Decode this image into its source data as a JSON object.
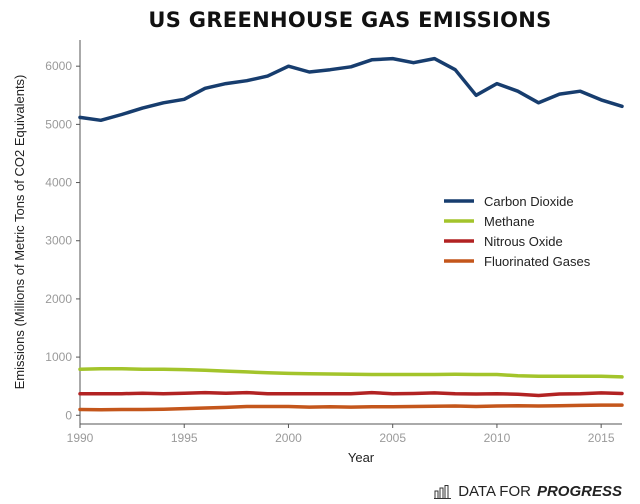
{
  "chart_data": {
    "type": "line",
    "title": "US GREENHOUSE GAS EMISSIONS",
    "xlabel": "Year",
    "ylabel": "Emissions (Millions of Metric Tons of CO2 Equivalents)",
    "xlim": [
      1990,
      2016
    ],
    "ylim": [
      -150,
      6450
    ],
    "xticks": [
      1990,
      1995,
      2000,
      2005,
      2010,
      2015
    ],
    "yticks": [
      0,
      1000,
      2000,
      3000,
      4000,
      5000,
      6000
    ],
    "grid": false,
    "legend_position": "right",
    "x": [
      1990,
      1991,
      1992,
      1993,
      1994,
      1995,
      1996,
      1997,
      1998,
      1999,
      2000,
      2001,
      2002,
      2003,
      2004,
      2005,
      2006,
      2007,
      2008,
      2009,
      2010,
      2011,
      2012,
      2013,
      2014,
      2015,
      2016
    ],
    "series": [
      {
        "name": "Carbon Dioxide",
        "color": "#173d6e",
        "values": [
          5120,
          5070,
          5170,
          5280,
          5370,
          5430,
          5620,
          5700,
          5750,
          5830,
          6000,
          5900,
          5940,
          5990,
          6110,
          6130,
          6060,
          6130,
          5940,
          5500,
          5700,
          5570,
          5370,
          5520,
          5570,
          5420,
          5310
        ]
      },
      {
        "name": "Methane",
        "color": "#a3c42b",
        "values": [
          790,
          800,
          800,
          790,
          790,
          785,
          775,
          760,
          745,
          730,
          720,
          715,
          710,
          705,
          700,
          700,
          700,
          700,
          705,
          700,
          700,
          680,
          670,
          670,
          670,
          670,
          660
        ]
      },
      {
        "name": "Nitrous Oxide",
        "color": "#b22222",
        "values": [
          370,
          370,
          370,
          380,
          370,
          380,
          390,
          380,
          390,
          370,
          370,
          370,
          370,
          370,
          390,
          370,
          375,
          385,
          370,
          365,
          370,
          360,
          340,
          365,
          370,
          385,
          375
        ]
      },
      {
        "name": "Fluorinated Gases",
        "color": "#c4561b",
        "values": [
          100,
          95,
          100,
          100,
          105,
          115,
          125,
          135,
          150,
          150,
          150,
          140,
          145,
          140,
          145,
          145,
          150,
          155,
          160,
          150,
          160,
          165,
          160,
          165,
          170,
          175,
          175
        ]
      }
    ]
  },
  "brand": {
    "text_regular": "DATA FOR",
    "text_bold": "PROGRESS",
    "icon": "bar-chart-icon"
  }
}
